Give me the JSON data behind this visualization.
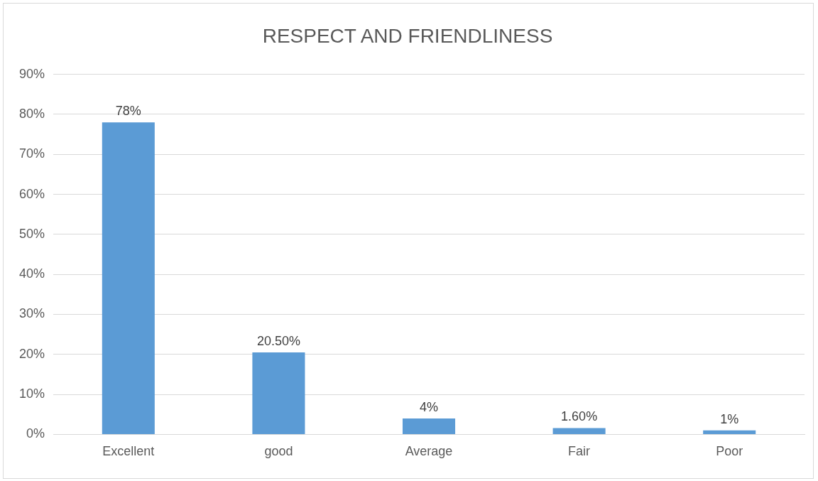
{
  "chart_data": {
    "type": "bar",
    "title": "RESPECT AND FRIENDLINESS",
    "categories": [
      "Excellent",
      "good",
      "Average",
      "Fair",
      "Poor"
    ],
    "values": [
      78,
      20.5,
      4,
      1.6,
      1
    ],
    "value_labels": [
      "78%",
      "20.50%",
      "4%",
      "1.60%",
      "1%"
    ],
    "color": "#5b9bd5",
    "ylim": [
      0,
      90
    ],
    "yticks": [
      {
        "value": 0,
        "label": "0%"
      },
      {
        "value": 10,
        "label": "10%"
      },
      {
        "value": 20,
        "label": "20%"
      },
      {
        "value": 30,
        "label": "30%"
      },
      {
        "value": 40,
        "label": "40%"
      },
      {
        "value": 50,
        "label": "50%"
      },
      {
        "value": 60,
        "label": "60%"
      },
      {
        "value": 70,
        "label": "70%"
      },
      {
        "value": 80,
        "label": "80%"
      },
      {
        "value": 90,
        "label": "90%"
      }
    ],
    "grid": "y"
  }
}
